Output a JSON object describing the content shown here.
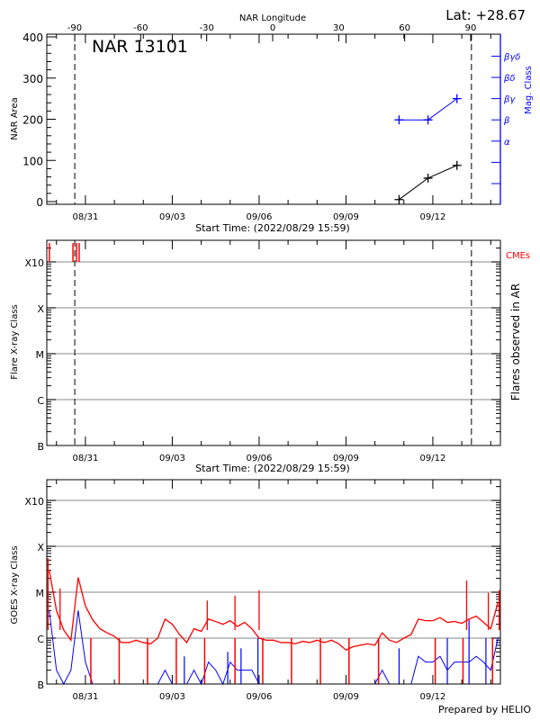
{
  "header": {
    "lat_label": "Lat: +28.67",
    "footer": "Prepared by HELIO"
  },
  "colors": {
    "area": "#000000",
    "mag": "#0000ff",
    "cme": "#ff0000",
    "goes_long": "#ff0000",
    "goes_short": "#0000ff",
    "grid": "#a0a0a0"
  },
  "chart_data": [
    {
      "type": "line",
      "title": "NAR 13101",
      "top_axis_label": "NAR Longitude",
      "top_ticks": [
        -90,
        -60,
        -30,
        0,
        30,
        60,
        90
      ],
      "xlabel": "Start Time: (2022/08/29 15:59)",
      "x_range": [
        "2022-08-29 15:59",
        "2022-09-14 08:00"
      ],
      "x_ticks": [
        "08/31",
        "09/03",
        "09/06",
        "09/09",
        "09/12"
      ],
      "x_tick_dates": [
        "2022-08-31 00:00",
        "2022-09-03 00:00",
        "2022-09-06 00:00",
        "2022-09-09 00:00",
        "2022-09-12 00:00"
      ],
      "ylabel": "NAR Area",
      "ylim": [
        0,
        400
      ],
      "y_ticks": [
        0,
        100,
        200,
        300,
        400
      ],
      "y2label": "Mag. Class",
      "y2_ticks": [
        "",
        "",
        "α",
        "β",
        "βγ",
        "βδ",
        "βγδ"
      ],
      "limb_lines": [
        "2022-08-30 15:10",
        "2022-09-13 08:00"
      ],
      "series": [
        {
          "name": "NAR Area",
          "axis": "left",
          "x": [
            "2022-09-10 20:00",
            "2022-09-11 20:00",
            "2022-09-12 20:00"
          ],
          "values": [
            5,
            57,
            88
          ]
        },
        {
          "name": "Mag. Class",
          "axis": "right",
          "x": [
            "2022-09-10 20:00",
            "2022-09-11 20:00",
            "2022-09-12 20:00"
          ],
          "values": [
            "β",
            "β",
            "βγ"
          ]
        }
      ]
    },
    {
      "type": "scatter",
      "xlabel": "Start Time: (2022/08/29 15:59)",
      "ylabel": "Flare X-ray Class",
      "y2label": "Flares observed in AR",
      "y_scale": "log",
      "y_ticks": [
        "B",
        "C",
        "M",
        "X",
        "X10"
      ],
      "grid": true,
      "cme_label": "CMEs",
      "cmes": [
        "2022-08-29 18:10",
        "2022-08-30 13:40",
        "2022-08-30 16:40",
        "2022-08-30 18:50"
      ],
      "flares": []
    },
    {
      "type": "line",
      "ylabel": "GOES X-ray Class",
      "y_scale": "log",
      "y_ticks": [
        "B",
        "C",
        "M",
        "X",
        "X10"
      ],
      "grid": true,
      "series": [
        {
          "axis": "long",
          "x_start": "2022-08-29 18:00",
          "x_step_hours": 6,
          "values": [
            3e-05,
            4e-06,
            1.5e-06,
            9e-07,
            2.1e-05,
            5e-06,
            2.5e-06,
            1.6e-06,
            1.3e-06,
            1.1e-06,
            8e-07,
            8e-07,
            9e-07,
            8e-07,
            7.5e-07,
            1e-06,
            2.6e-06,
            2e-06,
            1.2e-06,
            8e-07,
            1.6e-06,
            1.4e-06,
            2.6e-06,
            2.3e-06,
            2e-06,
            2.4e-06,
            1.8e-06,
            2.2e-06,
            1.6e-06,
            1e-06,
            9e-07,
            9e-07,
            8e-07,
            8e-07,
            7.5e-07,
            8.5e-07,
            8e-07,
            9e-07,
            8e-07,
            9e-07,
            7.5e-07,
            5.5e-07,
            6.5e-07,
            7e-07,
            7.5e-07,
            7e-07,
            1.3e-06,
            9e-07,
            8e-07,
            1e-06,
            1.2e-06,
            2.6e-06,
            2.4e-06,
            2.4e-06,
            2.8e-06,
            2.2e-06,
            2.3e-06,
            2.1e-06,
            2.6e-06,
            3e-06,
            2.2e-06,
            1.6e-06,
            6e-06
          ]
        },
        {
          "axis": "short",
          "x_start": "2022-08-29 18:00",
          "x_step_hours": 6,
          "values": [
            4e-06,
            2e-07,
            8e-08,
            2e-07,
            4e-06,
            3e-07,
            5e-08,
            5e-08,
            5e-08,
            5e-08,
            5e-08,
            5e-08,
            5e-08,
            5e-08,
            5e-08,
            5e-08,
            2e-07,
            5e-08,
            5e-08,
            5e-08,
            2e-07,
            1e-07,
            3e-07,
            2e-07,
            1e-07,
            3e-07,
            2e-07,
            2e-07,
            2e-07,
            5e-08,
            5e-08,
            5e-08,
            5e-08,
            5e-08,
            5e-08,
            5e-08,
            5e-08,
            5e-08,
            5e-08,
            5e-08,
            5e-08,
            5e-08,
            5e-08,
            5e-08,
            5e-08,
            5e-08,
            2e-07,
            5e-08,
            5e-08,
            5e-08,
            1e-07,
            4e-07,
            3e-07,
            3e-07,
            4e-07,
            2e-07,
            3e-07,
            3e-07,
            3e-07,
            4e-07,
            3e-07,
            2e-07,
            1e-06
          ]
        }
      ],
      "long_spikes": [
        [
          "2022-08-29 17:00",
          5.5e-05
        ],
        [
          "2022-08-30 03:00",
          1.2e-05
        ],
        [
          "2022-09-04 05:00",
          6.6e-06
        ],
        [
          "2022-09-05 04:00",
          8.4e-06
        ],
        [
          "2022-09-06 00:00",
          1.1e-05
        ],
        [
          "2022-09-13 04:00",
          1.8e-05
        ],
        [
          "2022-09-13 22:00",
          9.7e-06
        ],
        [
          "2022-09-14 07:00",
          1.1e-05
        ]
      ],
      "short_spikes": [
        [
          "2022-09-05 23:00",
          1e-06
        ],
        [
          "2022-09-12 12:00",
          1e-06
        ],
        [
          "2022-09-13 06:00",
          2.5e-06
        ],
        [
          "2022-09-13 20:00",
          1e-06
        ],
        [
          "2022-09-03 10:00",
          4e-07
        ],
        [
          "2022-09-04 22:00",
          5e-07
        ],
        [
          "2022-09-05 09:00",
          6e-07
        ],
        [
          "2022-09-10 20:00",
          6e-07
        ]
      ],
      "data_gaps": [
        "2022-08-31 04:30",
        "2022-09-01 04:00",
        "2022-09-02 03:30",
        "2022-09-03 03:20",
        "2022-09-04 02:50",
        "2022-09-05 04:00",
        "2022-09-06 03:00",
        "2022-09-07 02:50",
        "2022-09-08 02:50",
        "2022-09-09 02:30",
        "2022-09-10 03:00",
        "2022-09-12 02:00",
        "2022-09-13 01:00",
        "2022-09-14 01:30"
      ]
    }
  ]
}
